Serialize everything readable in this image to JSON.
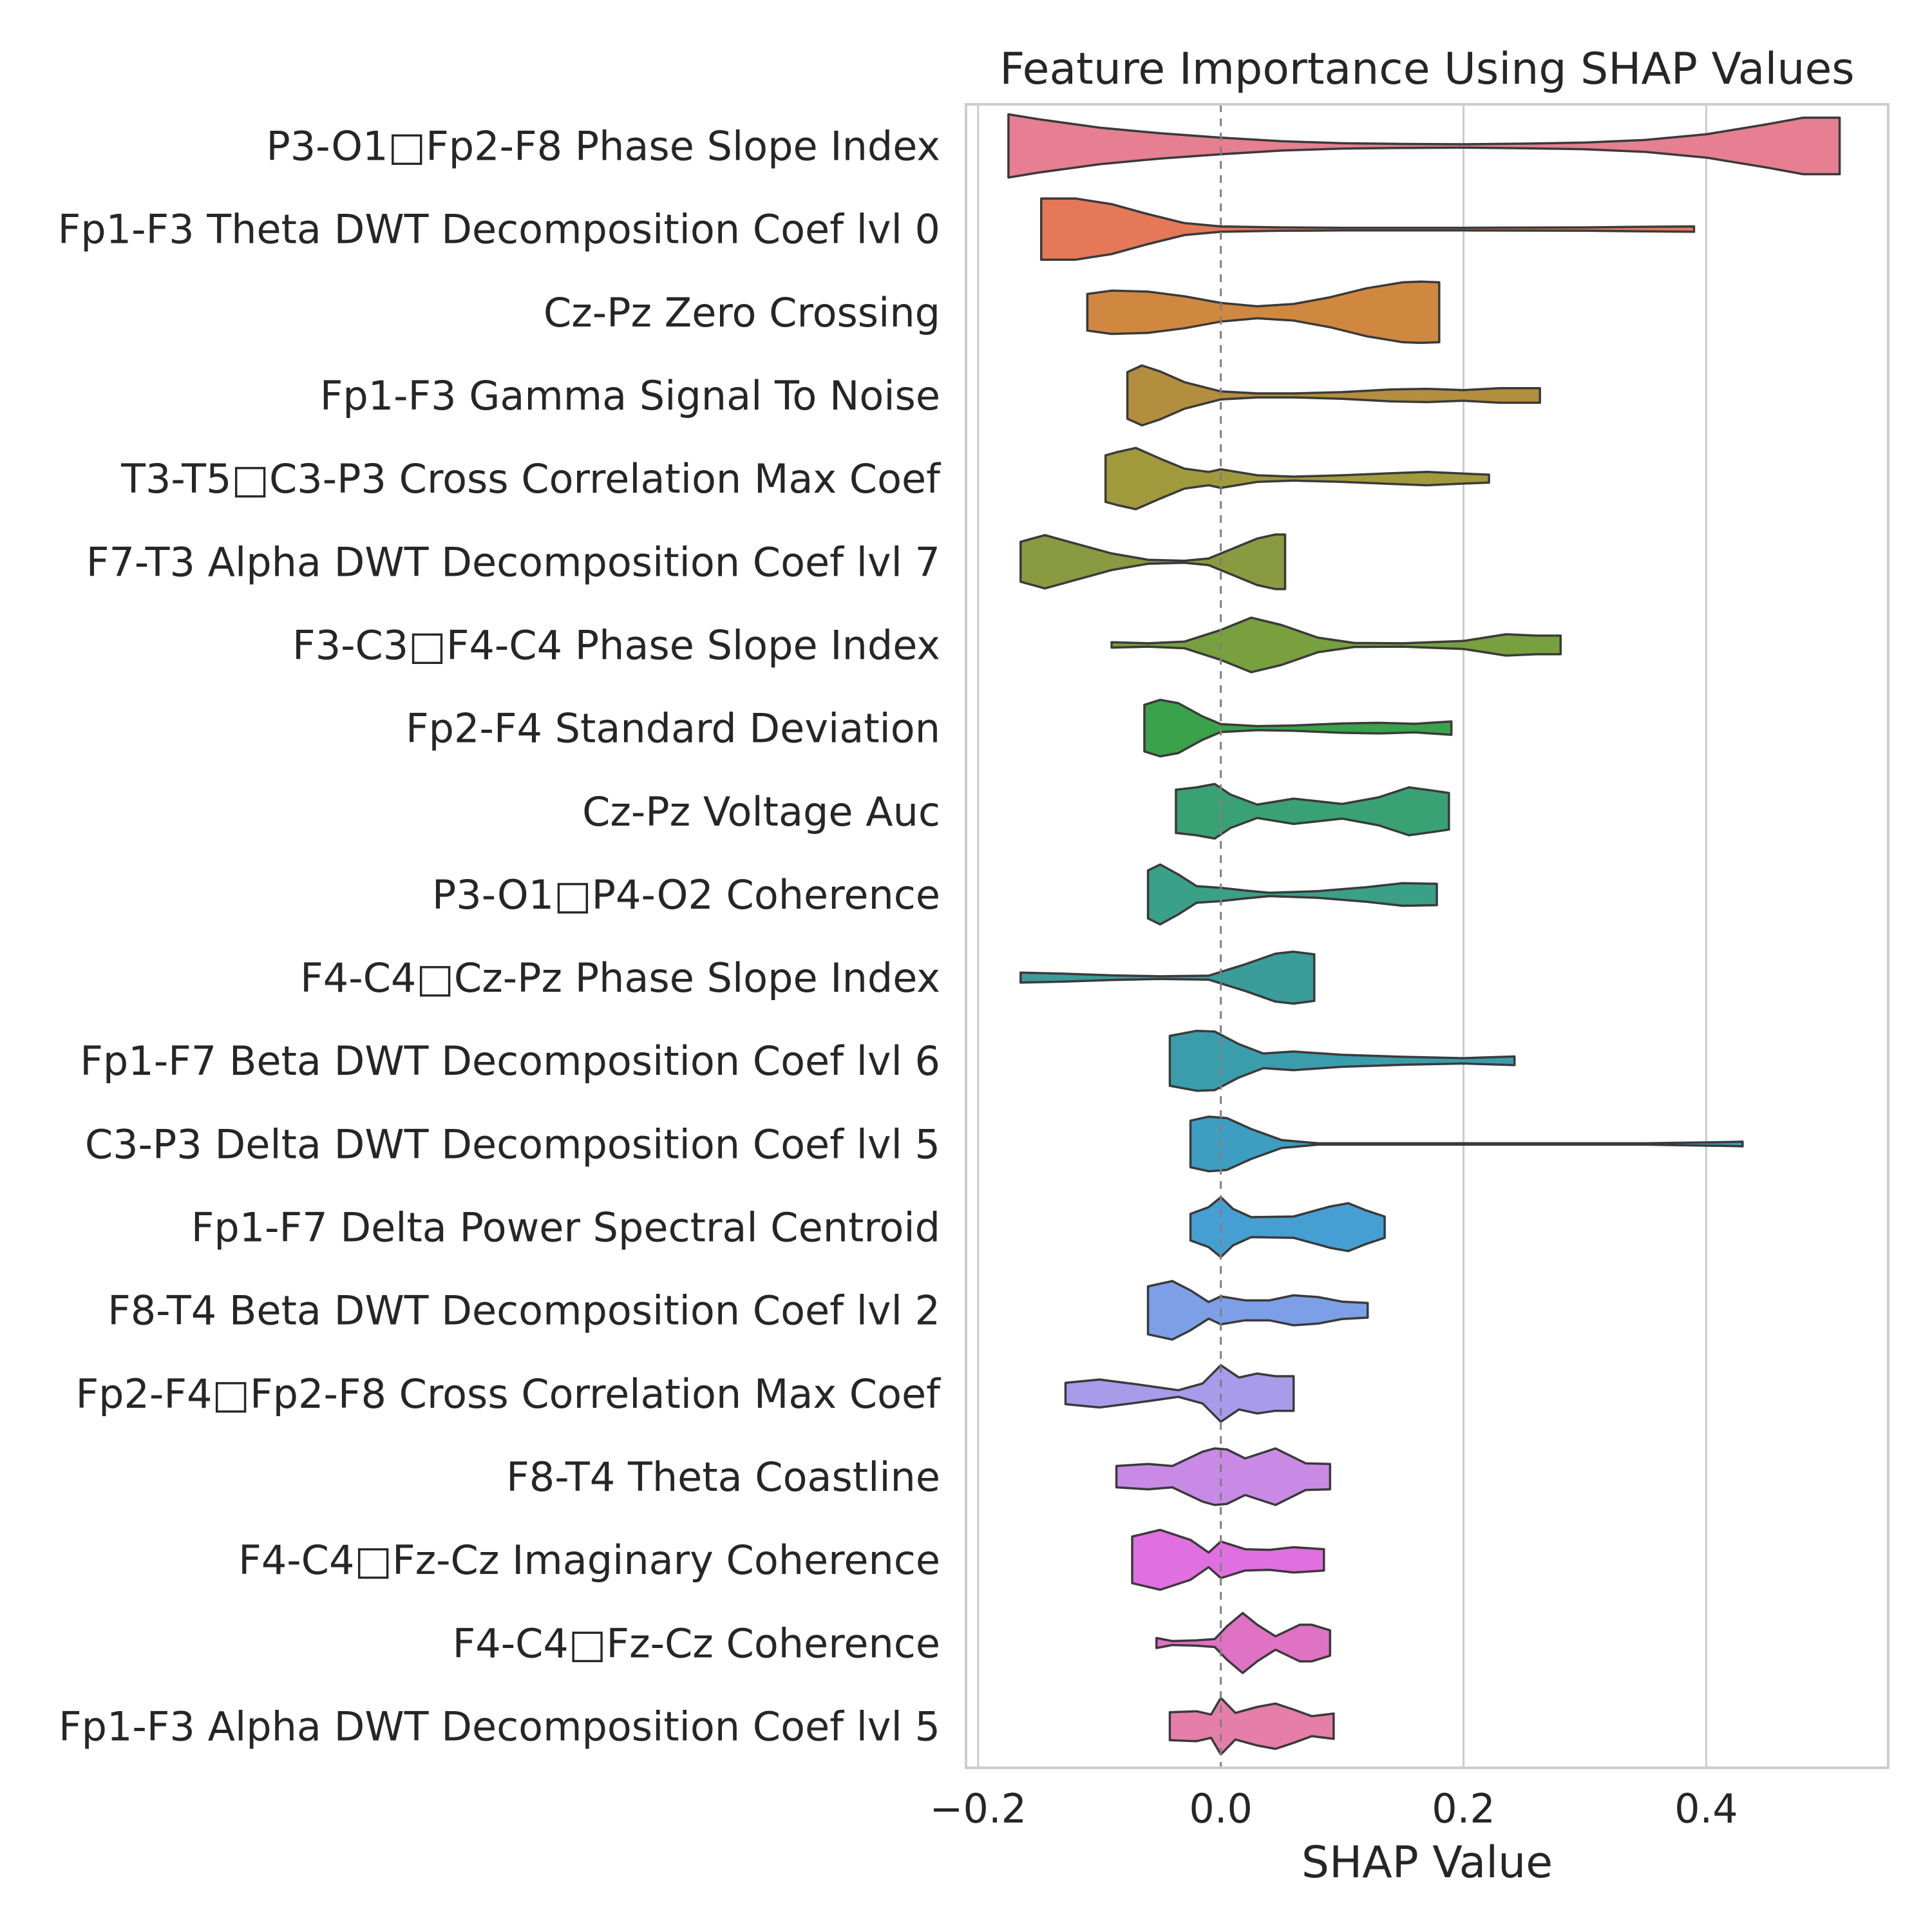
{
  "chart_data": {
    "type": "violin",
    "orientation": "horizontal",
    "title": "Feature Importance Using SHAP Values",
    "xlabel": "SHAP Value",
    "ylabel": "",
    "xlim": [
      -0.21,
      0.55
    ],
    "xticks": [
      -0.2,
      0.0,
      0.2,
      0.4
    ],
    "xtick_labels": [
      "−0.2",
      "0.0",
      "0.2",
      "0.4"
    ],
    "grid": true,
    "reference_line": 0.0,
    "features": [
      {
        "name": "P3-O1□Fp2-F8 Phase Slope Index",
        "color": "#e57f91",
        "min": -0.175,
        "max": 0.51,
        "profile": [
          [
            -0.175,
            0.95
          ],
          [
            -0.15,
            0.8
          ],
          [
            -0.1,
            0.55
          ],
          [
            -0.05,
            0.38
          ],
          [
            0.0,
            0.25
          ],
          [
            0.05,
            0.14
          ],
          [
            0.1,
            0.08
          ],
          [
            0.15,
            0.06
          ],
          [
            0.2,
            0.05
          ],
          [
            0.25,
            0.07
          ],
          [
            0.3,
            0.1
          ],
          [
            0.35,
            0.18
          ],
          [
            0.4,
            0.35
          ],
          [
            0.45,
            0.65
          ],
          [
            0.48,
            0.85
          ],
          [
            0.51,
            0.85
          ]
        ]
      },
      {
        "name": "Fp1-F3 Theta DWT Decomposition Coef lvl 0",
        "color": "#e57859",
        "min": -0.148,
        "max": 0.39,
        "profile": [
          [
            -0.148,
            0.92
          ],
          [
            -0.12,
            0.92
          ],
          [
            -0.09,
            0.75
          ],
          [
            -0.06,
            0.45
          ],
          [
            -0.03,
            0.18
          ],
          [
            0.0,
            0.08
          ],
          [
            0.05,
            0.05
          ],
          [
            0.1,
            0.04
          ],
          [
            0.2,
            0.04
          ],
          [
            0.3,
            0.05
          ],
          [
            0.35,
            0.07
          ],
          [
            0.39,
            0.08
          ]
        ]
      },
      {
        "name": "Cz-Pz Zero Crossing",
        "color": "#d08840",
        "min": -0.11,
        "max": 0.18,
        "profile": [
          [
            -0.11,
            0.55
          ],
          [
            -0.09,
            0.65
          ],
          [
            -0.06,
            0.62
          ],
          [
            -0.03,
            0.48
          ],
          [
            0.0,
            0.28
          ],
          [
            0.03,
            0.18
          ],
          [
            0.06,
            0.25
          ],
          [
            0.09,
            0.45
          ],
          [
            0.12,
            0.72
          ],
          [
            0.15,
            0.9
          ],
          [
            0.165,
            0.92
          ],
          [
            0.18,
            0.9
          ]
        ]
      },
      {
        "name": "Fp1-F3 Gamma Signal To Noise",
        "color": "#b38e3f",
        "min": -0.077,
        "max": 0.263,
        "profile": [
          [
            -0.077,
            0.7
          ],
          [
            -0.065,
            0.9
          ],
          [
            -0.05,
            0.72
          ],
          [
            -0.03,
            0.4
          ],
          [
            0.0,
            0.12
          ],
          [
            0.03,
            0.06
          ],
          [
            0.06,
            0.06
          ],
          [
            0.1,
            0.1
          ],
          [
            0.14,
            0.18
          ],
          [
            0.17,
            0.2
          ],
          [
            0.2,
            0.16
          ],
          [
            0.23,
            0.22
          ],
          [
            0.263,
            0.22
          ]
        ]
      },
      {
        "name": "T3-T5□C3-P3 Cross Correlation Max Coef",
        "color": "#a19a3d",
        "min": -0.095,
        "max": 0.221,
        "profile": [
          [
            -0.095,
            0.7
          ],
          [
            -0.085,
            0.8
          ],
          [
            -0.07,
            0.92
          ],
          [
            -0.05,
            0.6
          ],
          [
            -0.03,
            0.3
          ],
          [
            -0.01,
            0.2
          ],
          [
            0.0,
            0.28
          ],
          [
            0.01,
            0.22
          ],
          [
            0.03,
            0.1
          ],
          [
            0.06,
            0.06
          ],
          [
            0.1,
            0.1
          ],
          [
            0.14,
            0.16
          ],
          [
            0.17,
            0.2
          ],
          [
            0.2,
            0.15
          ],
          [
            0.221,
            0.12
          ]
        ]
      },
      {
        "name": "F7-T3 Alpha DWT Decomposition Coef lvl 7",
        "color": "#8a9a40",
        "min": -0.165,
        "max": 0.053,
        "profile": [
          [
            -0.165,
            0.6
          ],
          [
            -0.145,
            0.8
          ],
          [
            -0.12,
            0.55
          ],
          [
            -0.09,
            0.25
          ],
          [
            -0.06,
            0.06
          ],
          [
            -0.03,
            0.03
          ],
          [
            -0.01,
            0.1
          ],
          [
            0.01,
            0.4
          ],
          [
            0.03,
            0.7
          ],
          [
            0.045,
            0.82
          ],
          [
            0.053,
            0.82
          ]
        ]
      },
      {
        "name": "F3-C3□F4-C4 Phase Slope Index",
        "color": "#78a03e",
        "min": -0.09,
        "max": 0.28,
        "profile": [
          [
            -0.09,
            0.08
          ],
          [
            -0.06,
            0.05
          ],
          [
            -0.03,
            0.1
          ],
          [
            0.0,
            0.45
          ],
          [
            0.025,
            0.82
          ],
          [
            0.05,
            0.6
          ],
          [
            0.08,
            0.22
          ],
          [
            0.11,
            0.06
          ],
          [
            0.15,
            0.05
          ],
          [
            0.2,
            0.12
          ],
          [
            0.235,
            0.32
          ],
          [
            0.26,
            0.28
          ],
          [
            0.28,
            0.28
          ]
        ]
      },
      {
        "name": "Fp2-F4 Standard Deviation",
        "color": "#3aa24a",
        "min": -0.063,
        "max": 0.19,
        "profile": [
          [
            -0.063,
            0.7
          ],
          [
            -0.05,
            0.85
          ],
          [
            -0.035,
            0.75
          ],
          [
            -0.015,
            0.35
          ],
          [
            0.0,
            0.12
          ],
          [
            0.03,
            0.06
          ],
          [
            0.06,
            0.08
          ],
          [
            0.1,
            0.14
          ],
          [
            0.13,
            0.16
          ],
          [
            0.16,
            0.13
          ],
          [
            0.19,
            0.2
          ]
        ]
      },
      {
        "name": "Cz-Pz Voltage Auc",
        "color": "#3aa174",
        "min": -0.037,
        "max": 0.188,
        "profile": [
          [
            -0.037,
            0.65
          ],
          [
            -0.02,
            0.72
          ],
          [
            -0.005,
            0.82
          ],
          [
            0.008,
            0.5
          ],
          [
            0.03,
            0.2
          ],
          [
            0.06,
            0.38
          ],
          [
            0.1,
            0.22
          ],
          [
            0.13,
            0.42
          ],
          [
            0.155,
            0.72
          ],
          [
            0.175,
            0.62
          ],
          [
            0.188,
            0.55
          ]
        ]
      },
      {
        "name": "P3-O1□P4-O2 Coherence",
        "color": "#3aa088",
        "min": -0.06,
        "max": 0.178,
        "profile": [
          [
            -0.06,
            0.72
          ],
          [
            -0.05,
            0.9
          ],
          [
            -0.035,
            0.6
          ],
          [
            -0.02,
            0.25
          ],
          [
            0.0,
            0.2
          ],
          [
            0.02,
            0.12
          ],
          [
            0.04,
            0.05
          ],
          [
            0.08,
            0.1
          ],
          [
            0.12,
            0.22
          ],
          [
            0.15,
            0.34
          ],
          [
            0.178,
            0.32
          ]
        ]
      },
      {
        "name": "F4-C4□Cz-Pz Phase Slope Index",
        "color": "#3a9d9a",
        "min": -0.165,
        "max": 0.077,
        "profile": [
          [
            -0.165,
            0.15
          ],
          [
            -0.13,
            0.12
          ],
          [
            -0.09,
            0.07
          ],
          [
            -0.05,
            0.04
          ],
          [
            -0.01,
            0.06
          ],
          [
            0.02,
            0.4
          ],
          [
            0.045,
            0.72
          ],
          [
            0.06,
            0.78
          ],
          [
            0.077,
            0.7
          ]
        ]
      },
      {
        "name": "Fp1-F7 Beta DWT Decomposition Coef lvl 6",
        "color": "#3a9dab",
        "min": -0.042,
        "max": 0.242,
        "profile": [
          [
            -0.042,
            0.75
          ],
          [
            -0.02,
            0.9
          ],
          [
            -0.005,
            0.88
          ],
          [
            0.015,
            0.5
          ],
          [
            0.035,
            0.22
          ],
          [
            0.06,
            0.28
          ],
          [
            0.1,
            0.18
          ],
          [
            0.15,
            0.12
          ],
          [
            0.2,
            0.08
          ],
          [
            0.242,
            0.13
          ]
        ]
      },
      {
        "name": "C3-P3 Delta DWT Decomposition Coef lvl 5",
        "color": "#3d9ec2",
        "min": -0.025,
        "max": 0.43,
        "profile": [
          [
            -0.025,
            0.7
          ],
          [
            -0.01,
            0.82
          ],
          [
            0.005,
            0.78
          ],
          [
            0.025,
            0.45
          ],
          [
            0.05,
            0.12
          ],
          [
            0.08,
            0.02
          ],
          [
            0.2,
            0.02
          ],
          [
            0.35,
            0.02
          ],
          [
            0.42,
            0.06
          ],
          [
            0.43,
            0.07
          ]
        ]
      },
      {
        "name": "Fp1-F7 Delta Power Spectral Centroid",
        "color": "#459fd3",
        "min": -0.025,
        "max": 0.135,
        "profile": [
          [
            -0.025,
            0.4
          ],
          [
            -0.01,
            0.6
          ],
          [
            0.0,
            0.9
          ],
          [
            0.01,
            0.55
          ],
          [
            0.025,
            0.3
          ],
          [
            0.06,
            0.32
          ],
          [
            0.09,
            0.62
          ],
          [
            0.105,
            0.72
          ],
          [
            0.12,
            0.5
          ],
          [
            0.135,
            0.32
          ]
        ]
      },
      {
        "name": "F8-T4 Beta DWT Decomposition Coef lvl 2",
        "color": "#7d9fe8",
        "min": -0.06,
        "max": 0.121,
        "profile": [
          [
            -0.06,
            0.72
          ],
          [
            -0.04,
            0.88
          ],
          [
            -0.025,
            0.6
          ],
          [
            -0.01,
            0.25
          ],
          [
            0.0,
            0.42
          ],
          [
            0.02,
            0.3
          ],
          [
            0.04,
            0.3
          ],
          [
            0.06,
            0.45
          ],
          [
            0.08,
            0.4
          ],
          [
            0.1,
            0.26
          ],
          [
            0.121,
            0.22
          ]
        ]
      },
      {
        "name": "Fp2-F4□Fp2-F8 Cross Correlation Max Coef",
        "color": "#a89bea",
        "min": -0.128,
        "max": 0.06,
        "profile": [
          [
            -0.128,
            0.32
          ],
          [
            -0.1,
            0.42
          ],
          [
            -0.07,
            0.28
          ],
          [
            -0.035,
            0.1
          ],
          [
            -0.015,
            0.3
          ],
          [
            0.0,
            0.85
          ],
          [
            0.015,
            0.48
          ],
          [
            0.03,
            0.6
          ],
          [
            0.045,
            0.52
          ],
          [
            0.06,
            0.52
          ]
        ]
      },
      {
        "name": "F8-T4 Theta Coastline",
        "color": "#c98ae6",
        "min": -0.086,
        "max": 0.09,
        "profile": [
          [
            -0.086,
            0.32
          ],
          [
            -0.06,
            0.38
          ],
          [
            -0.04,
            0.32
          ],
          [
            -0.015,
            0.75
          ],
          [
            -0.005,
            0.85
          ],
          [
            0.005,
            0.82
          ],
          [
            0.02,
            0.55
          ],
          [
            0.045,
            0.85
          ],
          [
            0.07,
            0.4
          ],
          [
            0.09,
            0.38
          ]
        ]
      },
      {
        "name": "F4-C4□Fz-Cz Imaginary Coherence",
        "color": "#e06fe0",
        "min": -0.073,
        "max": 0.085,
        "profile": [
          [
            -0.073,
            0.7
          ],
          [
            -0.05,
            0.9
          ],
          [
            -0.025,
            0.6
          ],
          [
            -0.01,
            0.22
          ],
          [
            0.0,
            0.55
          ],
          [
            0.02,
            0.32
          ],
          [
            0.04,
            0.3
          ],
          [
            0.06,
            0.38
          ],
          [
            0.085,
            0.32
          ]
        ]
      },
      {
        "name": "F4-C4□Fz-Cz Coherence",
        "color": "#e072c4",
        "min": -0.053,
        "max": 0.09,
        "profile": [
          [
            -0.053,
            0.15
          ],
          [
            -0.04,
            0.06
          ],
          [
            -0.02,
            0.08
          ],
          [
            -0.005,
            0.12
          ],
          [
            0.005,
            0.5
          ],
          [
            0.018,
            0.9
          ],
          [
            0.03,
            0.55
          ],
          [
            0.045,
            0.2
          ],
          [
            0.065,
            0.55
          ],
          [
            0.075,
            0.55
          ],
          [
            0.09,
            0.38
          ]
        ]
      },
      {
        "name": "Fp1-F3 Alpha DWT Decomposition Coef lvl 5",
        "color": "#e57ea8",
        "min": -0.042,
        "max": 0.093,
        "profile": [
          [
            -0.042,
            0.42
          ],
          [
            -0.02,
            0.45
          ],
          [
            -0.008,
            0.35
          ],
          [
            0.0,
            0.85
          ],
          [
            0.012,
            0.4
          ],
          [
            0.03,
            0.58
          ],
          [
            0.045,
            0.68
          ],
          [
            0.06,
            0.5
          ],
          [
            0.075,
            0.3
          ],
          [
            0.093,
            0.38
          ]
        ]
      }
    ]
  }
}
